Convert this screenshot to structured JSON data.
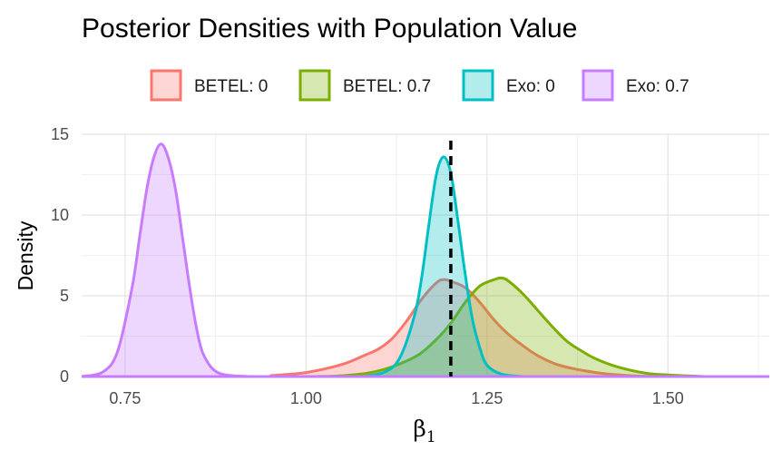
{
  "chart_data": {
    "type": "area",
    "title": "Posterior Densities with Population Value",
    "xlabel": {
      "symbol": "β",
      "subscript": "1"
    },
    "ylabel": "Density",
    "xlim": [
      0.69,
      1.64
    ],
    "ylim": [
      0,
      15
    ],
    "x_ticks": [
      0.75,
      1.0,
      1.25,
      1.5
    ],
    "x_tick_labels": [
      "0.75",
      "1.00",
      "1.25",
      "1.50"
    ],
    "y_ticks": [
      0,
      5,
      10,
      15
    ],
    "y_tick_labels": [
      "0",
      "5",
      "10",
      "15"
    ],
    "grid": true,
    "legend_position": "top",
    "reference_line": {
      "x": 1.2,
      "style": "dashed",
      "color": "#000000"
    },
    "series": [
      {
        "name": "BETEL: 0",
        "color": "#F8766D",
        "fill": "rgba(248,118,109,0.30)",
        "x": [
          0.95,
          1.0,
          1.05,
          1.08,
          1.1,
          1.12,
          1.14,
          1.16,
          1.18,
          1.19,
          1.2,
          1.22,
          1.24,
          1.26,
          1.28,
          1.3,
          1.32,
          1.35,
          1.4,
          1.45,
          1.5
        ],
        "y": [
          0.05,
          0.25,
          0.75,
          1.3,
          1.7,
          2.4,
          3.5,
          4.8,
          5.8,
          6.0,
          5.9,
          5.5,
          4.6,
          3.5,
          2.6,
          1.9,
          1.3,
          0.7,
          0.25,
          0.05,
          0
        ]
      },
      {
        "name": "BETEL: 0.7",
        "color": "#7CAE00",
        "fill": "rgba(124,174,0,0.30)",
        "x": [
          1.0,
          1.05,
          1.1,
          1.15,
          1.18,
          1.2,
          1.22,
          1.24,
          1.26,
          1.27,
          1.28,
          1.3,
          1.32,
          1.34,
          1.36,
          1.38,
          1.4,
          1.43,
          1.47,
          1.5,
          1.55
        ],
        "y": [
          0,
          0.05,
          0.35,
          1.2,
          2.3,
          3.3,
          4.6,
          5.6,
          6.0,
          6.1,
          5.9,
          5.1,
          4.1,
          3.1,
          2.2,
          1.6,
          1.1,
          0.6,
          0.2,
          0.1,
          0
        ]
      },
      {
        "name": "Exo: 0",
        "color": "#00BFC4",
        "fill": "rgba(0,191,196,0.30)",
        "x": [
          1.08,
          1.11,
          1.13,
          1.15,
          1.16,
          1.17,
          1.18,
          1.19,
          1.2,
          1.21,
          1.22,
          1.23,
          1.24,
          1.25,
          1.27,
          1.3
        ],
        "y": [
          0,
          0.3,
          1.2,
          3.8,
          6.2,
          9.5,
          12.5,
          13.6,
          12.6,
          9.6,
          6.3,
          3.5,
          1.8,
          0.7,
          0.15,
          0
        ]
      },
      {
        "name": "Exo: 0.7",
        "color": "#C77CFF",
        "fill": "rgba(199,124,255,0.30)",
        "x": [
          0.69,
          0.72,
          0.74,
          0.76,
          0.77,
          0.78,
          0.79,
          0.8,
          0.81,
          0.82,
          0.83,
          0.84,
          0.85,
          0.86,
          0.88,
          0.92
        ],
        "y": [
          0,
          0.3,
          1.6,
          5.6,
          8.6,
          11.6,
          13.6,
          14.4,
          13.5,
          11.5,
          8.4,
          5.3,
          2.7,
          1.2,
          0.2,
          0
        ]
      }
    ],
    "baseline_line": {
      "from": 0.69,
      "to": 1.64,
      "color": "#C77CFF"
    }
  }
}
